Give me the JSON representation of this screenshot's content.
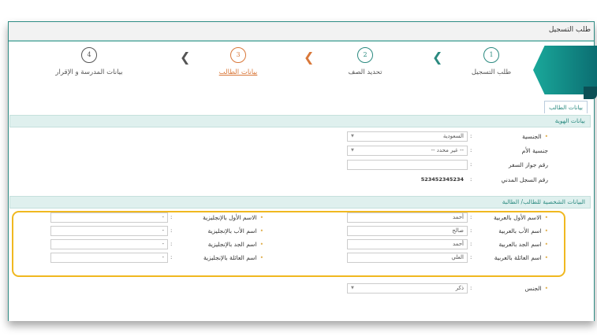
{
  "window": {
    "title": "طلب التسجيل"
  },
  "steps": [
    {
      "number": "1",
      "label": "طلب التسجيل",
      "color": "#2b8a80"
    },
    {
      "number": "2",
      "label": "تحديد الصف",
      "color": "#2b8a80"
    },
    {
      "number": "3",
      "label": "بيانات الطالب",
      "color": "#d9783a",
      "active": true
    },
    {
      "number": "4",
      "label": "بيانات المدرسة و الإقرار",
      "color": "#555555"
    }
  ],
  "tab": "بيانات الطالب",
  "identity": {
    "header": "بيانات الهوية",
    "nationality": {
      "label": "الجنسية",
      "value": "السعودية"
    },
    "mother_nationality": {
      "label": "جنسية الأم",
      "value": "-- غير محدد --"
    },
    "passport": {
      "label": "رقم جواز السفر",
      "value": ""
    },
    "civil_id": {
      "label": "رقم السجل المدني",
      "value": "523452345234"
    }
  },
  "personal": {
    "header": "البيانات الشخصية للطالب/ الطالبة",
    "arabic": [
      {
        "label": "الاسم الأول بالعربية",
        "value": "أحمد"
      },
      {
        "label": "اسم الأب بالعربية",
        "value": "صالح"
      },
      {
        "label": "اسم الجد بالعربية",
        "value": "أحمد"
      },
      {
        "label": "اسم العائلة بالعربية",
        "value": "العلي"
      }
    ],
    "english": [
      {
        "label": "الاسم الأول بالإنجليزية",
        "value": "-"
      },
      {
        "label": "اسم الأب بالإنجليزية",
        "value": "-"
      },
      {
        "label": "اسم الجد بالإنجليزية",
        "value": "-"
      },
      {
        "label": "اسم العائلة بالإنجليزية",
        "value": "-"
      }
    ],
    "gender": {
      "label": "الجنس",
      "value": "ذكر"
    }
  },
  "colon": ":",
  "required_mark": "•",
  "dropdown_arrow": "▼",
  "chevron": "❮"
}
